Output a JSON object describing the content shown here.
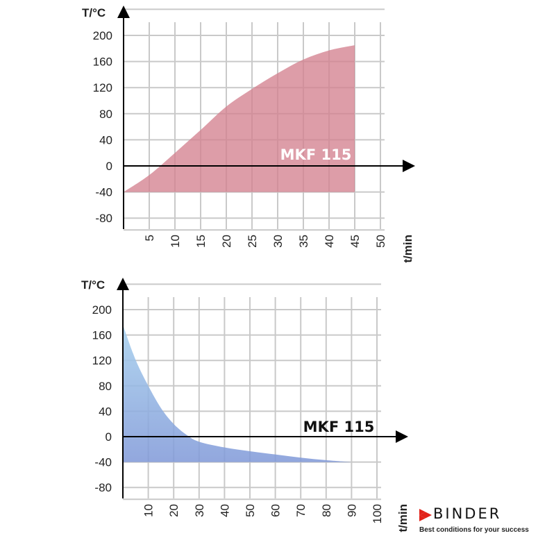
{
  "chart_data": [
    {
      "type": "area",
      "ylabel": "T/°C",
      "xlabel": "t/min",
      "series_label": "MKF 115",
      "color": "#d4828f",
      "label_color": "#ffffff",
      "grid": true,
      "xlim": [
        0,
        50
      ],
      "ylim": [
        -80,
        200
      ],
      "x_ticks": [
        5,
        10,
        15,
        20,
        25,
        30,
        35,
        40,
        45,
        50
      ],
      "y_ticks": [
        200,
        160,
        120,
        80,
        40,
        0,
        -40,
        -80
      ],
      "baseline": -40,
      "x": [
        0,
        5,
        10,
        15,
        20,
        25,
        30,
        35,
        40,
        45
      ],
      "y": [
        -40,
        -14,
        20,
        55,
        91,
        118,
        142,
        163,
        177,
        185
      ]
    },
    {
      "type": "area",
      "ylabel": "T/°C",
      "xlabel": "t/min",
      "series_label": "MKF 115",
      "color": "#8fb2e0",
      "label_color": "#111111",
      "grid": true,
      "xlim": [
        0,
        100
      ],
      "ylim": [
        -80,
        200
      ],
      "x_ticks": [
        10,
        20,
        30,
        40,
        50,
        60,
        70,
        80,
        90,
        100
      ],
      "y_ticks": [
        200,
        160,
        120,
        80,
        40,
        0,
        -40,
        -80
      ],
      "baseline": -40,
      "x": [
        0,
        5,
        10,
        15,
        20,
        25,
        30,
        40,
        50,
        60,
        70,
        80,
        90
      ],
      "y": [
        176,
        121,
        80,
        45,
        20,
        3,
        -8,
        -17,
        -23,
        -28,
        -33,
        -37,
        -40
      ]
    }
  ],
  "logo": {
    "name": "BINDER",
    "tagline": "Best conditions for your success",
    "mark_color": "#e2231a"
  }
}
